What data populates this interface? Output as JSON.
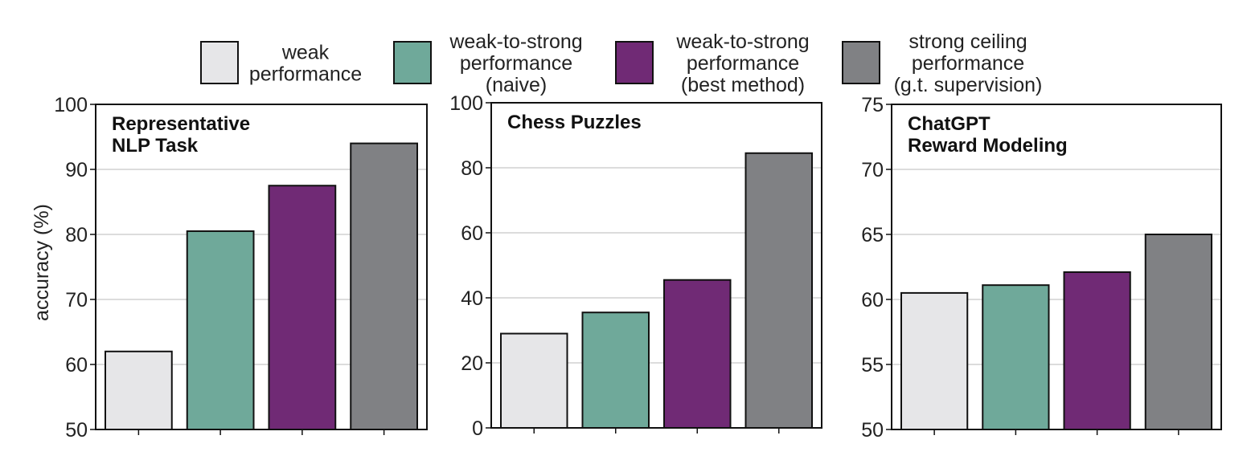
{
  "legend": [
    {
      "lines": [
        "weak",
        "performance"
      ],
      "color": "#e6e6e8"
    },
    {
      "lines": [
        "weak-to-strong",
        "performance",
        "(naive)"
      ],
      "color": "#6fa99a"
    },
    {
      "lines": [
        "weak-to-strong",
        "performance",
        "(best method)"
      ],
      "color": "#702a75"
    },
    {
      "lines": [
        "strong ceiling",
        "performance",
        "(g.t. supervision)"
      ],
      "color": "#808184"
    }
  ],
  "ylabel": "accuracy (%)",
  "chart_data": [
    {
      "type": "bar",
      "title_lines": [
        "Representative",
        "NLP Task"
      ],
      "categories": [
        "weak performance",
        "weak-to-strong performance (naive)",
        "weak-to-strong performance (best method)",
        "strong ceiling performance (g.t. supervision)"
      ],
      "values": [
        62,
        80.5,
        87.5,
        94
      ],
      "ylim": [
        50,
        100
      ],
      "yticks": [
        50,
        60,
        70,
        80,
        90,
        100
      ],
      "grid": true
    },
    {
      "type": "bar",
      "title_lines": [
        "Chess Puzzles"
      ],
      "categories": [
        "weak performance",
        "weak-to-strong performance (naive)",
        "weak-to-strong performance (best method)",
        "strong ceiling performance (g.t. supervision)"
      ],
      "values": [
        29,
        35.5,
        45.5,
        84.5
      ],
      "ylim": [
        0,
        100
      ],
      "yticks": [
        0,
        20,
        40,
        60,
        80,
        100
      ],
      "grid": true
    },
    {
      "type": "bar",
      "title_lines": [
        "ChatGPT",
        "Reward Modeling"
      ],
      "categories": [
        "weak performance",
        "weak-to-strong performance (naive)",
        "weak-to-strong performance (best method)",
        "strong ceiling performance (g.t. supervision)"
      ],
      "values": [
        60.5,
        61.1,
        62.1,
        65.0
      ],
      "ylim": [
        50,
        75
      ],
      "yticks": [
        50,
        55,
        60,
        65,
        70,
        75
      ],
      "grid": true
    }
  ]
}
